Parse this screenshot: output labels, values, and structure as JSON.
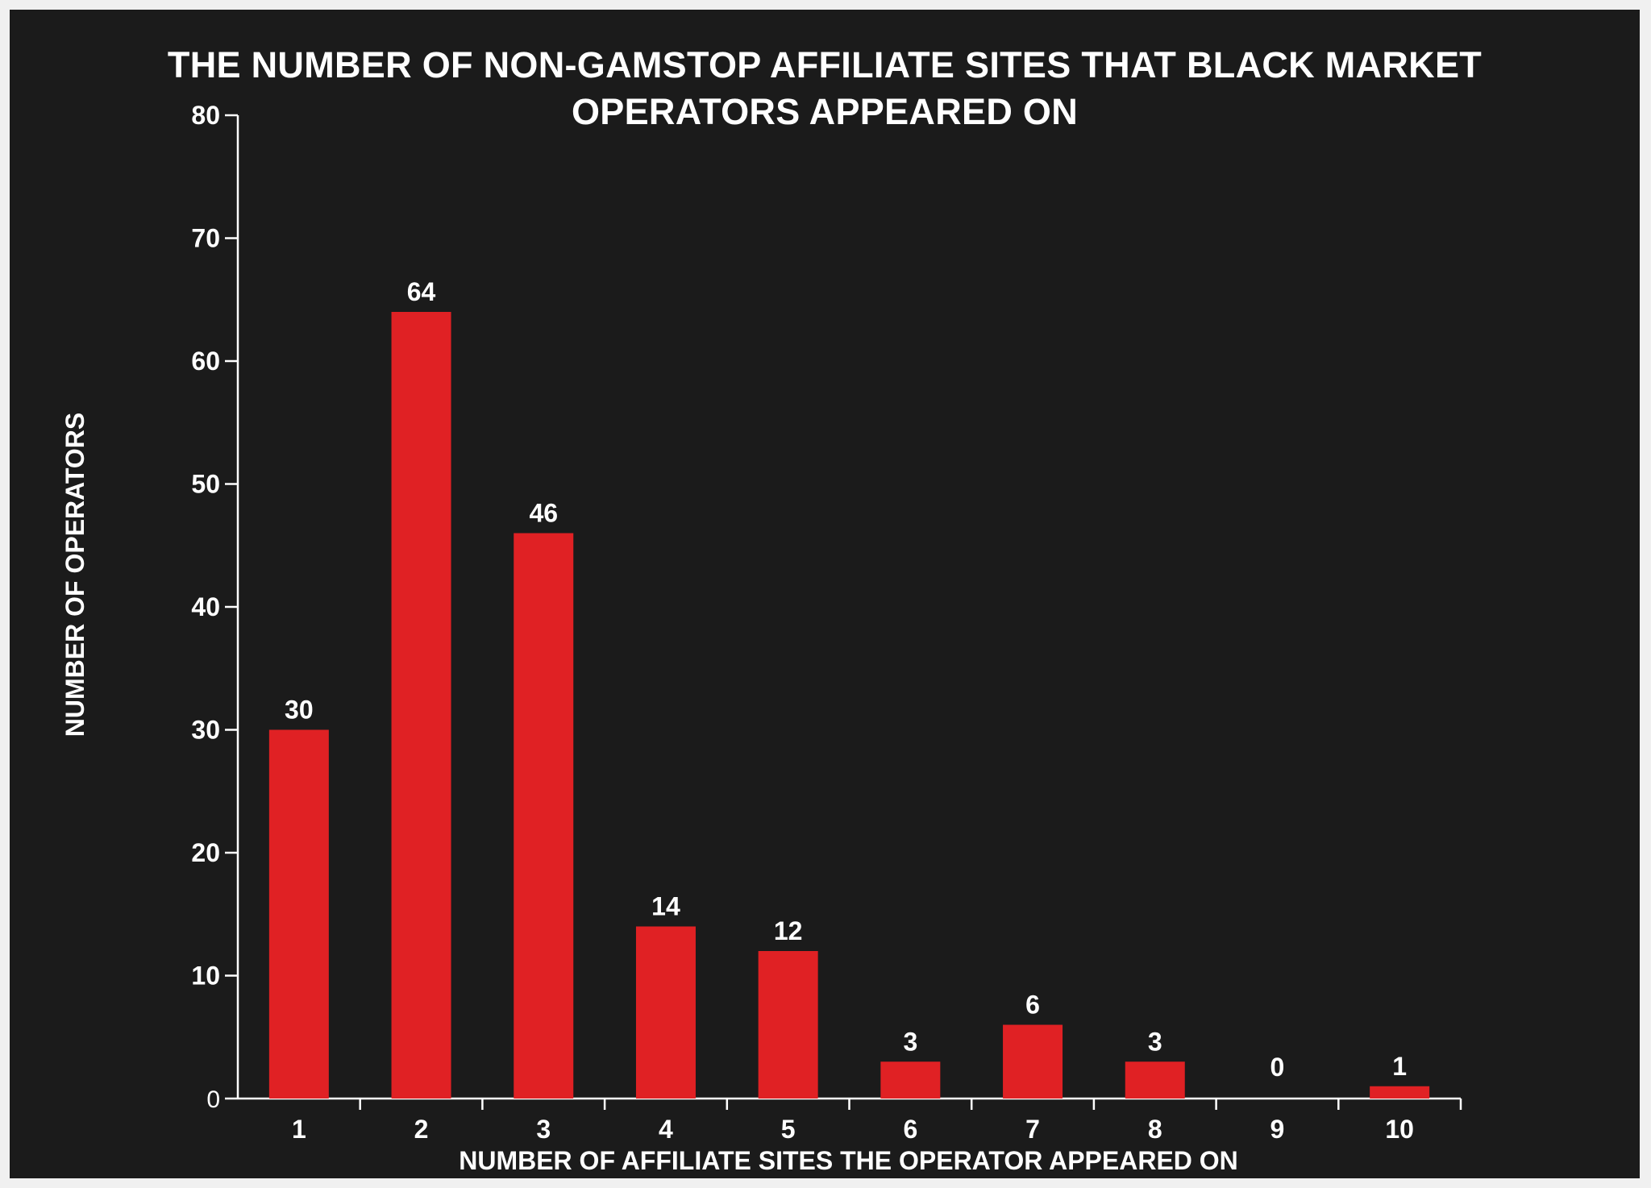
{
  "colors": {
    "background": "#1b1b1b",
    "bar": "#e02124",
    "axis": "#ffffff",
    "text": "#ffffff"
  },
  "chart_data": {
    "type": "bar",
    "title_lines": [
      "THE NUMBER OF NON-GAMSTOP AFFILIATE SITES THAT BLACK MARKET",
      "OPERATORS APPEARED ON"
    ],
    "xlabel": "NUMBER OF AFFILIATE SITES THE OPERATOR APPEARED ON",
    "ylabel": "NUMBER OF OPERATORS",
    "categories": [
      "1",
      "2",
      "3",
      "4",
      "5",
      "6",
      "7",
      "8",
      "9",
      "10"
    ],
    "values": [
      30,
      64,
      46,
      14,
      12,
      3,
      6,
      3,
      0,
      1
    ],
    "data_labels": [
      "30",
      "64",
      "46",
      "14",
      "12",
      "3",
      "6",
      "3",
      "0",
      "1"
    ],
    "ylim": [
      0,
      80
    ],
    "yticks": [
      0,
      10,
      20,
      30,
      40,
      50,
      60,
      70,
      80
    ],
    "legend": "none",
    "grid": false
  }
}
